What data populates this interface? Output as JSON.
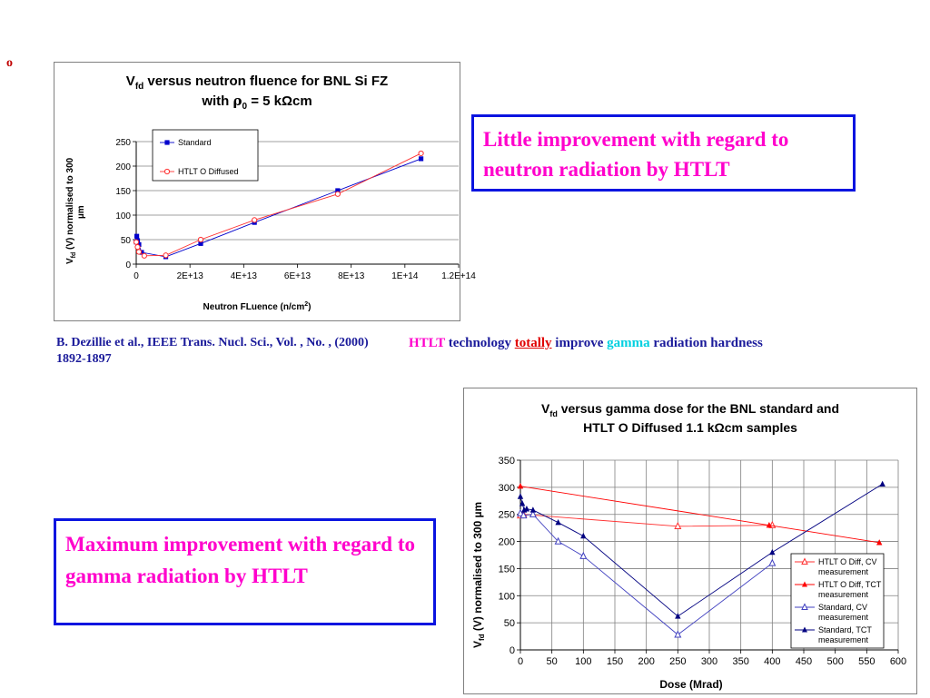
{
  "bullet": "o",
  "neutron_chart": {
    "title_line1_pre": "V",
    "title_line1_sub": "fd",
    "title_line1_post": " versus neutron fluence for BNL Si FZ",
    "title_line2_pre": "with ",
    "title_line2_rho": "ρ",
    "title_line2_sub": "0",
    "title_line2_post": " = 5 kΩcm",
    "ylabel_line1_pre": "V",
    "ylabel_line1_sub": "fd",
    "ylabel_line1_post": " (V) normalised to 300",
    "ylabel_line2": "µm",
    "xlabel_pre": "Neutron FLuence (n/cm",
    "xlabel_sup": "2",
    "xlabel_post": ")"
  },
  "gamma_chart": {
    "title_line1_pre": "V",
    "title_line1_sub": "fd",
    "title_line1_post": " versus gamma dose for the BNL standard and",
    "title_line2": "HTLT O Diffused 1.1 kΩcm samples",
    "ylabel_pre": "V",
    "ylabel_sub": "fd",
    "ylabel_post": " (V) normalised to 300 µm",
    "xlabel": "Dose (Mrad)"
  },
  "chart_data": [
    {
      "type": "scatter",
      "x_tick_labels": [
        "0",
        "2E+13",
        "4E+13",
        "6E+13",
        "8E+13",
        "1E+14",
        "1.2E+14"
      ],
      "y_tick_labels": [
        "0",
        "50",
        "100",
        "150",
        "200",
        "250"
      ],
      "xlim": [
        0,
        120000000000000.0
      ],
      "ylim": [
        0,
        250
      ],
      "grid": "horizontal",
      "legend_placement": "top-left",
      "series": [
        {
          "name": "Standard",
          "color": "#0000cc",
          "marker": "square-filled",
          "x": [
            0,
            200000000000.0,
            500000000000.0,
            1000000000000.0,
            2000000000000.0,
            11000000000000.0,
            24000000000000.0,
            44000000000000.0,
            75000000000000.0,
            106000000000000.0
          ],
          "y": [
            45,
            57,
            48,
            40,
            24,
            15,
            42,
            85,
            150,
            215
          ]
        },
        {
          "name": "HTLT O Diffused",
          "color": "#ff3030",
          "marker": "circle-open",
          "x": [
            0,
            500000000000.0,
            1000000000000.0,
            3000000000000.0,
            11000000000000.0,
            24000000000000.0,
            44000000000000.0,
            75000000000000.0,
            106000000000000.0
          ],
          "y": [
            45,
            35,
            25,
            17,
            18,
            50,
            90,
            143,
            226
          ]
        }
      ]
    },
    {
      "type": "line",
      "x_tick_labels": [
        "0",
        "50",
        "100",
        "150",
        "200",
        "250",
        "300",
        "350",
        "400",
        "450",
        "500",
        "550",
        "600"
      ],
      "y_tick_labels": [
        "0",
        "50",
        "100",
        "150",
        "200",
        "250",
        "300",
        "350"
      ],
      "xlim": [
        0,
        600
      ],
      "ylim": [
        0,
        350
      ],
      "grid": "both",
      "legend_placement": "bottom-right",
      "series": [
        {
          "name": "HTLT O Diff, CV measurement",
          "color": "#ff3030",
          "marker": "triangle-open",
          "x": [
            0,
            5,
            250,
            400
          ],
          "y": [
            248,
            250,
            228,
            230
          ]
        },
        {
          "name": "HTLT O Diff, TCT measurement",
          "color": "#ff0000",
          "marker": "triangle-filled",
          "x": [
            0,
            395,
            570
          ],
          "y": [
            302,
            230,
            198
          ]
        },
        {
          "name": "Standard, CV measurement",
          "color": "#4040c0",
          "marker": "triangle-open",
          "x": [
            0,
            5,
            20,
            60,
            100,
            250,
            400
          ],
          "y": [
            252,
            248,
            250,
            200,
            173,
            28,
            160
          ]
        },
        {
          "name": "Standard, TCT measurement",
          "color": "#000080",
          "marker": "triangle-filled",
          "x": [
            0,
            3,
            6,
            10,
            20,
            60,
            100,
            250,
            400,
            575
          ],
          "y": [
            283,
            270,
            258,
            260,
            258,
            235,
            210,
            62,
            180,
            306
          ]
        }
      ]
    }
  ],
  "callout_top": "Little improvement with regard to neutron radiation by HTLT",
  "callout_bottom": "Maximum improvement with regard to gamma radiation by HTLT",
  "reference": "B. Dezillie et al., IEEE Trans. Nucl. Sci., Vol.  , No. , (2000) 1892-1897",
  "htlt_sentence": {
    "w1": "HTLT",
    "w2": " technology ",
    "w3": "totally",
    "w4": " improve ",
    "w5": "gamma",
    "w6": " radiation hardness"
  }
}
